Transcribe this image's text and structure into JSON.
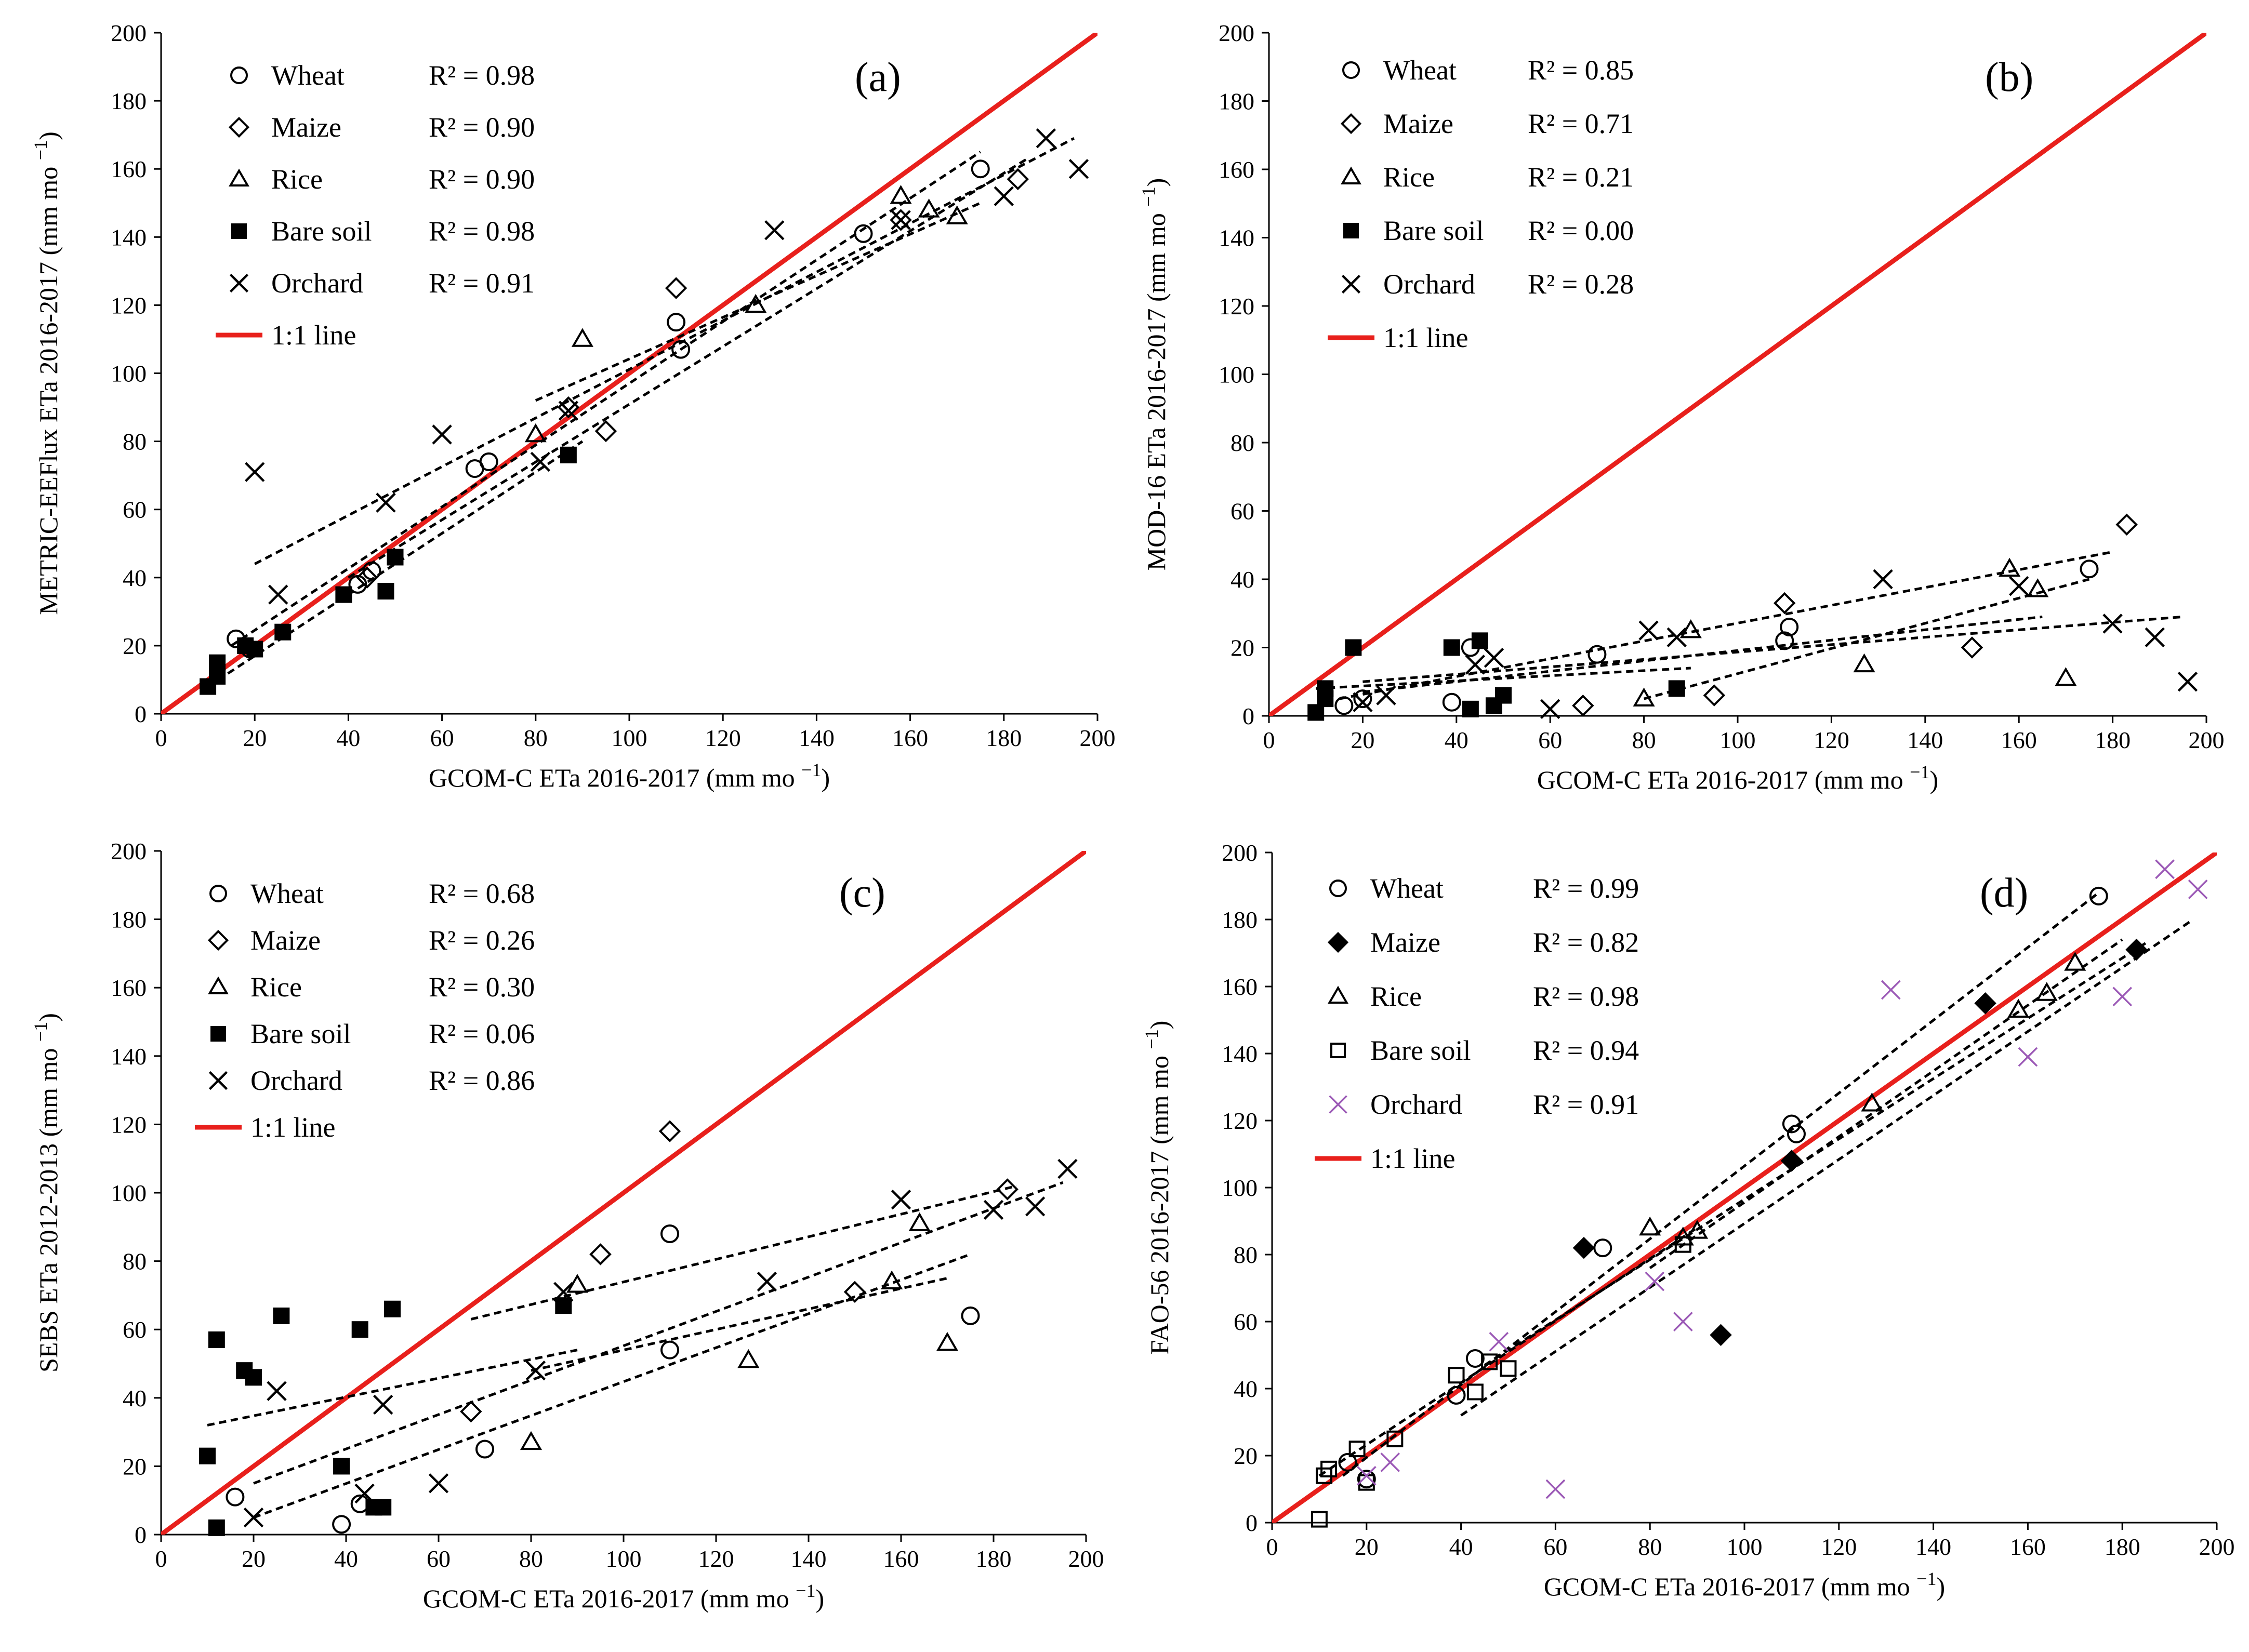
{
  "figure": {
    "style": {
      "fit_color": "#000000",
      "one_to_one_color": "#e8201c",
      "orchard_d_color": "#9b59b6",
      "marker_color": "#000000"
    }
  },
  "chart_data": [
    {
      "panel": "(a)",
      "type": "scatter",
      "xlabel": "GCOM-C ETa 2016-2017",
      "xunit": "(mm mo",
      "ylabel": "METRIC-EEFlux  ETa 2016-2017",
      "yunit": "(mm mo",
      "exp": "−1",
      "unit_close": ")",
      "xlim": [
        0,
        200
      ],
      "ylim": [
        0,
        200
      ],
      "xticks": [
        "0",
        "20",
        "40",
        "60",
        "80",
        "100",
        "120",
        "140",
        "160",
        "180",
        "200"
      ],
      "yticks": [
        "0",
        "20",
        "40",
        "60",
        "80",
        "100",
        "120",
        "140",
        "160",
        "180",
        "200"
      ],
      "series": [
        {
          "name": "Wheat",
          "r2": "R² = 0.98",
          "marker": "circle-open",
          "x": [
            16,
            19,
            42,
            45,
            67,
            70,
            110,
            111,
            150,
            175
          ],
          "y": [
            22,
            19,
            38,
            42,
            72,
            74,
            115,
            107,
            141,
            160
          ],
          "fit": [
            [
              15,
              20
            ],
            [
              175,
              165
            ]
          ]
        },
        {
          "name": "Maize",
          "r2": "R² = 0.90",
          "marker": "diamond-open",
          "x": [
            44,
            87,
            95,
            110,
            158,
            183
          ],
          "y": [
            40,
            90,
            83,
            125,
            145,
            157
          ],
          "fit": [
            [
              40,
              40
            ],
            [
              185,
              163
            ]
          ]
        },
        {
          "name": "Rice",
          "r2": "R² = 0.90",
          "marker": "triangle-open",
          "x": [
            80,
            90,
            127,
            158,
            164,
            170
          ],
          "y": [
            82,
            110,
            120,
            152,
            148,
            146
          ],
          "fit": [
            [
              80,
              92
            ],
            [
              175,
              150
            ]
          ]
        },
        {
          "name": "Bare soil",
          "r2": "R² = 0.98",
          "marker": "square-filled",
          "x": [
            10,
            12,
            12,
            18,
            20,
            26,
            39,
            48,
            50,
            87
          ],
          "y": [
            8,
            11,
            15,
            20,
            19,
            24,
            35,
            36,
            46,
            76
          ],
          "fit": [
            [
              10,
              8
            ],
            [
              90,
              80
            ]
          ]
        },
        {
          "name": "Orchard",
          "r2": "R² = 0.91",
          "marker": "x",
          "x": [
            20,
            25,
            48,
            60,
            81,
            87,
            131,
            158,
            180,
            189,
            196
          ],
          "y": [
            71,
            35,
            62,
            82,
            74,
            89,
            142,
            145,
            152,
            169,
            160
          ],
          "fit": [
            [
              20,
              44
            ],
            [
              195,
              169
            ]
          ]
        },
        {
          "name": "1:1 line",
          "marker": "line-red",
          "x": [
            0,
            200
          ],
          "y": [
            0,
            200
          ]
        }
      ]
    },
    {
      "panel": "(b)",
      "type": "scatter",
      "xlabel": "GCOM-C ETa 2016-2017",
      "xunit": "(mm mo",
      "ylabel": "MOD-16  ETa 2016-2017",
      "yunit": "(mm mo",
      "exp": "−1",
      "unit_close": ")",
      "xlim": [
        0,
        200
      ],
      "ylim": [
        0,
        200
      ],
      "xticks": [
        "0",
        "20",
        "40",
        "60",
        "80",
        "100",
        "120",
        "140",
        "160",
        "180",
        "200"
      ],
      "yticks": [
        "0",
        "20",
        "40",
        "60",
        "80",
        "100",
        "120",
        "140",
        "160",
        "180",
        "200"
      ],
      "series": [
        {
          "name": "Wheat",
          "r2": "R² = 0.85",
          "marker": "circle-open",
          "x": [
            16,
            20,
            39,
            43,
            70,
            110,
            111,
            175
          ],
          "y": [
            3,
            5,
            4,
            20,
            18,
            22,
            26,
            43
          ],
          "fit": [
            [
              15,
              5
            ],
            [
              180,
              48
            ]
          ]
        },
        {
          "name": "Maize",
          "r2": "R² = 0.71",
          "marker": "diamond-open",
          "x": [
            67,
            95,
            110,
            150,
            183
          ],
          "y": [
            3,
            6,
            33,
            20,
            56
          ],
          "fit": [
            [
              20,
              10
            ],
            [
              195,
              29
            ]
          ]
        },
        {
          "name": "Rice",
          "r2": "R² = 0.21",
          "marker": "triangle-open",
          "x": [
            80,
            90,
            127,
            158,
            164,
            170
          ],
          "y": [
            5,
            25,
            15,
            43,
            37,
            11
          ],
          "fit": [
            [
              80,
              5
            ],
            [
              175,
              40
            ]
          ]
        },
        {
          "name": "Bare soil",
          "r2": "R² = 0.00",
          "marker": "square-filled",
          "x": [
            10,
            12,
            12,
            18,
            39,
            43,
            45,
            48,
            50,
            87
          ],
          "y": [
            1,
            5,
            8,
            20,
            20,
            2,
            22,
            3,
            6,
            8
          ],
          "fit": [
            [
              10,
              8
            ],
            [
              90,
              14
            ]
          ]
        },
        {
          "name": "Orchard",
          "r2": "R² = 0.28",
          "marker": "x",
          "x": [
            20,
            25,
            44,
            48,
            60,
            81,
            87,
            131,
            160,
            180,
            189,
            196
          ],
          "y": [
            4,
            6,
            15,
            17,
            2,
            25,
            23,
            40,
            38,
            27,
            23,
            10
          ],
          "fit": [
            [
              20,
              7
            ],
            [
              165,
              29
            ]
          ]
        },
        {
          "name": "1:1 line",
          "marker": "line-red",
          "x": [
            0,
            200
          ],
          "y": [
            0,
            200
          ]
        }
      ]
    },
    {
      "panel": "(c)",
      "type": "scatter",
      "xlabel": "GCOM-C ETa 2016-2017",
      "xunit": "(mm mo",
      "ylabel": "SEBS ETa 2012-2013",
      "yunit": "(mm mo",
      "exp": "−1",
      "unit_close": ")",
      "xlim": [
        0,
        200
      ],
      "ylim": [
        0,
        200
      ],
      "xticks": [
        "0",
        "20",
        "40",
        "60",
        "80",
        "100",
        "120",
        "140",
        "160",
        "180",
        "200"
      ],
      "yticks": [
        "0",
        "20",
        "40",
        "60",
        "80",
        "100",
        "120",
        "140",
        "160",
        "180",
        "200"
      ],
      "series": [
        {
          "name": "Wheat",
          "r2": "R² = 0.68",
          "marker": "circle-open",
          "x": [
            16,
            39,
            43,
            70,
            110,
            110,
            175
          ],
          "y": [
            11,
            3,
            9,
            25,
            54,
            88,
            64
          ],
          "fit": [
            [
              20,
              5
            ],
            [
              175,
              82
            ]
          ]
        },
        {
          "name": "Maize",
          "r2": "R² = 0.26",
          "marker": "diamond-open",
          "x": [
            67,
            95,
            110,
            150,
            183
          ],
          "y": [
            36,
            82,
            118,
            71,
            101
          ],
          "fit": [
            [
              67,
              63
            ],
            [
              185,
              102
            ]
          ]
        },
        {
          "name": "Rice",
          "r2": "R² = 0.30",
          "marker": "triangle-open",
          "x": [
            80,
            90,
            127,
            158,
            164,
            170
          ],
          "y": [
            27,
            73,
            51,
            74,
            91,
            56
          ],
          "fit": [
            [
              80,
              48
            ],
            [
              170,
              75
            ]
          ]
        },
        {
          "name": "Bare soil",
          "r2": "R² = 0.06",
          "marker": "square-filled",
          "x": [
            10,
            12,
            12,
            18,
            20,
            26,
            39,
            43,
            46,
            48,
            50,
            87
          ],
          "y": [
            23,
            57,
            2,
            48,
            46,
            64,
            20,
            60,
            8,
            8,
            66,
            67
          ],
          "fit": [
            [
              10,
              32
            ],
            [
              90,
              54
            ]
          ]
        },
        {
          "name": "Orchard",
          "r2": "R² = 0.86",
          "marker": "x",
          "x": [
            20,
            25,
            44,
            48,
            60,
            81,
            87,
            131,
            160,
            180,
            189,
            196
          ],
          "y": [
            5,
            42,
            12,
            38,
            15,
            48,
            71,
            74,
            98,
            95,
            96,
            107
          ],
          "fit": [
            [
              20,
              15
            ],
            [
              195,
              103
            ]
          ]
        },
        {
          "name": "1:1 line",
          "marker": "line-red",
          "x": [
            0,
            200
          ],
          "y": [
            0,
            200
          ]
        }
      ]
    },
    {
      "panel": "(d)",
      "type": "scatter",
      "xlabel": "GCOM-C ETa 2016-2017",
      "xunit": "(mm mo",
      "ylabel": "FAO-56 2016-2017",
      "yunit": "(mm mo",
      "exp": "−1",
      "unit_close": ")",
      "xlim": [
        0,
        200
      ],
      "ylim": [
        0,
        200
      ],
      "xticks": [
        "0",
        "20",
        "40",
        "60",
        "80",
        "100",
        "120",
        "140",
        "160",
        "180",
        "200"
      ],
      "yticks": [
        "0",
        "20",
        "40",
        "60",
        "80",
        "100",
        "120",
        "140",
        "160",
        "180",
        "200"
      ],
      "series": [
        {
          "name": "Wheat",
          "r2": "R² = 0.99",
          "marker": "circle-open",
          "x": [
            16,
            20,
            39,
            43,
            70,
            110,
            111,
            175
          ],
          "y": [
            18,
            13,
            38,
            49,
            82,
            119,
            116,
            187
          ],
          "fit": [
            [
              15,
              14
            ],
            [
              175,
              188
            ]
          ]
        },
        {
          "name": "Maize",
          "r2": "R² = 0.82",
          "marker": "diamond-filled",
          "x": [
            66,
            95,
            110,
            151,
            183
          ],
          "y": [
            82,
            56,
            108,
            155,
            171
          ],
          "fit": [
            [
              45,
              47
            ],
            [
              185,
              173
            ]
          ]
        },
        {
          "name": "Rice",
          "r2": "R² = 0.98",
          "marker": "triangle-open",
          "x": [
            80,
            87,
            90,
            127,
            158,
            164,
            170
          ],
          "y": [
            88,
            85,
            87,
            125,
            153,
            158,
            167
          ],
          "fit": [
            [
              80,
              76
            ],
            [
              180,
              174
            ]
          ]
        },
        {
          "name": "Bare soil",
          "r2": "R² = 0.94",
          "marker": "square-open",
          "x": [
            10,
            11,
            12,
            18,
            20,
            26,
            39,
            43,
            46,
            50,
            87
          ],
          "y": [
            1,
            14,
            16,
            22,
            12,
            25,
            44,
            39,
            48,
            46,
            83
          ],
          "fit": [
            [
              10,
              14
            ],
            [
              90,
              88
            ]
          ]
        },
        {
          "name": "Orchard",
          "r2": "R² = 0.91",
          "marker": "x-purple",
          "x": [
            20,
            25,
            48,
            60,
            81,
            87,
            131,
            160,
            180,
            189,
            196
          ],
          "y": [
            14,
            18,
            54,
            10,
            72,
            60,
            159,
            139,
            157,
            195,
            189
          ],
          "fit": [
            [
              40,
              32
            ],
            [
              195,
              180
            ]
          ]
        },
        {
          "name": "1:1 line",
          "marker": "line-red",
          "x": [
            0,
            200
          ],
          "y": [
            0,
            200
          ]
        }
      ]
    }
  ]
}
